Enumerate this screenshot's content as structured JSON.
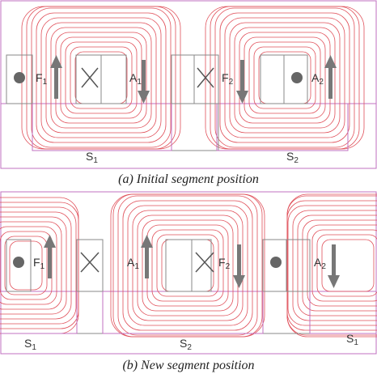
{
  "panel_a": {
    "caption": "(a) Initial segment position",
    "labels": {
      "f1": "F",
      "f1_sub": "1",
      "a1": "A",
      "a1_sub": "1",
      "f2": "F",
      "f2_sub": "2",
      "a2": "A",
      "a2_sub": "2",
      "s1": "S",
      "s1_sub": "1",
      "s2": "S",
      "s2_sub": "2"
    }
  },
  "panel_b": {
    "caption": "(b) New segment position",
    "labels": {
      "f1": "F",
      "f1_sub": "1",
      "a1": "A",
      "a1_sub": "1",
      "f2": "F",
      "f2_sub": "2",
      "a2": "A",
      "a2_sub": "2",
      "s1_left": "S",
      "s1_left_sub": "1",
      "s2": "S",
      "s2_sub": "2",
      "s1_right": "S",
      "s1_right_sub": "1"
    }
  },
  "colors": {
    "field_line": "#e0505a",
    "frame": "#c070c0",
    "arrow": "#777777",
    "dot": "#666666",
    "structure": "#888888"
  }
}
